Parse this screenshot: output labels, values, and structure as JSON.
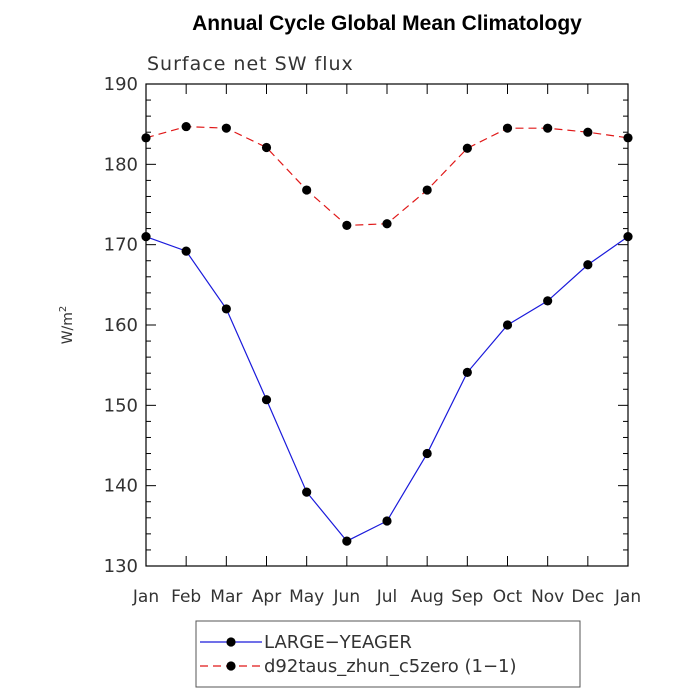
{
  "chart_data": {
    "type": "line",
    "title": "Annual Cycle Global Mean Climatology",
    "subtitle": "Surface net SW flux",
    "ylabel": "W/m",
    "ylabel_sup": "2",
    "xlabel": "",
    "ylim": [
      130,
      190
    ],
    "yticks": [
      "130",
      "140",
      "150",
      "160",
      "170",
      "180",
      "190"
    ],
    "categories": [
      "Jan",
      "Feb",
      "Mar",
      "Apr",
      "May",
      "Jun",
      "Jul",
      "Aug",
      "Sep",
      "Oct",
      "Nov",
      "Dec",
      "Jan"
    ],
    "series": [
      {
        "name": "LARGE−YEAGER",
        "color": "#1a1adb",
        "style": "solid",
        "values": [
          171.0,
          169.2,
          162.0,
          150.7,
          139.2,
          133.1,
          135.6,
          144.0,
          154.1,
          160.0,
          163.0,
          167.5,
          171.0
        ]
      },
      {
        "name": "d92taus_zhun_c5zero (1−1)",
        "color": "#e01818",
        "style": "dashed",
        "values": [
          183.3,
          184.7,
          184.5,
          182.1,
          176.8,
          172.4,
          172.6,
          176.8,
          182.0,
          184.5,
          184.5,
          184.0,
          183.3
        ]
      }
    ],
    "grid": false,
    "legend_position": "bottom"
  }
}
